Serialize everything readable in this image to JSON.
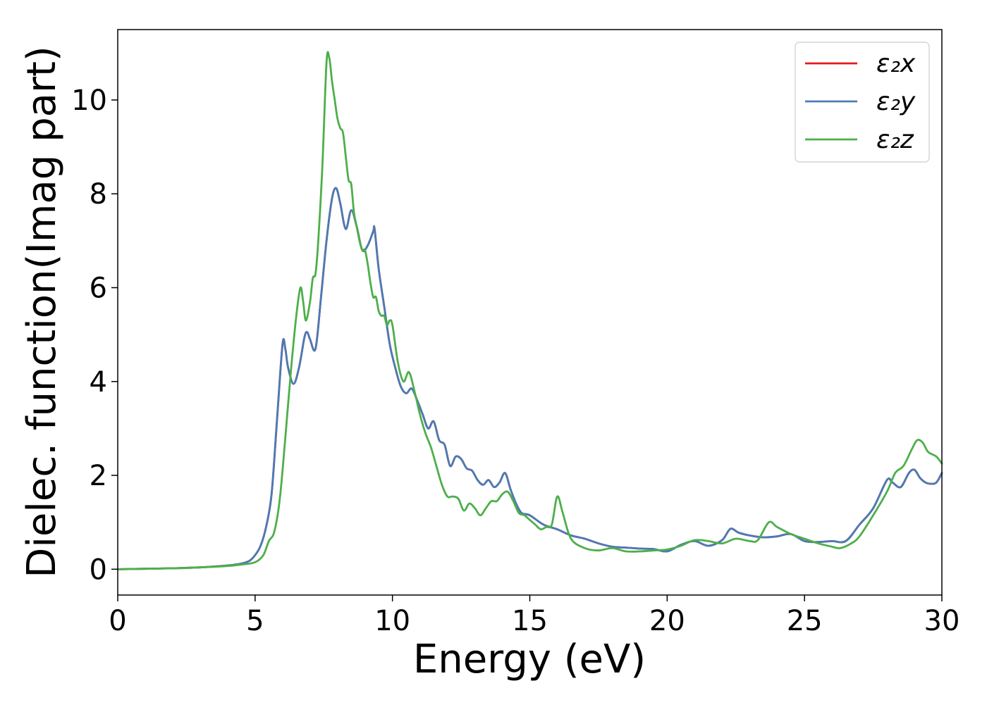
{
  "chart_data": {
    "type": "line",
    "xlabel": "Energy (eV)",
    "ylabel": "Dielec. function(Imag part)",
    "xlim": [
      0,
      30
    ],
    "ylim": [
      -0.55,
      11.5
    ],
    "xticks": [
      0,
      5,
      10,
      15,
      20,
      25,
      30
    ],
    "yticks": [
      0,
      2,
      4,
      6,
      8,
      10
    ],
    "grid": false,
    "legend_position": "top-right",
    "series": [
      {
        "name": "ε₂x",
        "color": "#e41a1c",
        "x": [
          0,
          1,
          2,
          3,
          4,
          4.5,
          4.8,
          5.0,
          5.2,
          5.4,
          5.6,
          5.8,
          6.0,
          6.1,
          6.2,
          6.4,
          6.6,
          6.8,
          6.9,
          7.0,
          7.2,
          7.4,
          7.6,
          7.8,
          7.95,
          8.1,
          8.3,
          8.5,
          8.7,
          8.9,
          9.1,
          9.3,
          9.35,
          9.5,
          9.7,
          9.9,
          10.1,
          10.3,
          10.5,
          10.7,
          10.9,
          11.1,
          11.3,
          11.5,
          11.7,
          11.9,
          12.1,
          12.3,
          12.5,
          12.7,
          12.9,
          13.1,
          13.3,
          13.5,
          13.7,
          13.9,
          14.1,
          14.3,
          14.5,
          14.7,
          15.0,
          15.5,
          16.0,
          16.5,
          17.0,
          17.5,
          18.0,
          18.5,
          19.0,
          19.5,
          20.0,
          20.5,
          21.0,
          21.5,
          22.0,
          22.3,
          22.6,
          23.0,
          23.5,
          24.0,
          24.5,
          25.0,
          25.5,
          26.0,
          26.5,
          27.0,
          27.5,
          28.0,
          28.2,
          28.5,
          28.8,
          29.0,
          29.2,
          29.4,
          29.6,
          29.8,
          30.0
        ],
        "y": [
          0.0,
          0.01,
          0.02,
          0.04,
          0.08,
          0.12,
          0.18,
          0.3,
          0.5,
          0.9,
          1.6,
          3.2,
          4.8,
          4.7,
          4.3,
          3.95,
          4.3,
          4.95,
          5.05,
          4.9,
          4.7,
          5.8,
          7.0,
          7.9,
          8.12,
          7.8,
          7.25,
          7.65,
          7.3,
          6.8,
          6.9,
          7.2,
          7.25,
          6.4,
          5.6,
          4.8,
          4.3,
          3.9,
          3.75,
          3.85,
          3.6,
          3.3,
          3.0,
          3.15,
          2.75,
          2.65,
          2.2,
          2.4,
          2.35,
          2.15,
          2.1,
          1.9,
          1.8,
          1.9,
          1.75,
          1.85,
          2.05,
          1.7,
          1.4,
          1.2,
          1.15,
          0.95,
          0.85,
          0.72,
          0.65,
          0.55,
          0.48,
          0.46,
          0.44,
          0.43,
          0.38,
          0.52,
          0.6,
          0.5,
          0.62,
          0.86,
          0.78,
          0.72,
          0.68,
          0.7,
          0.75,
          0.6,
          0.58,
          0.6,
          0.6,
          0.95,
          1.3,
          1.9,
          1.85,
          1.75,
          2.05,
          2.12,
          1.95,
          1.85,
          1.82,
          1.85,
          2.05
        ]
      },
      {
        "name": "ε₂y",
        "color": "#4a7bb5",
        "x": [
          0,
          1,
          2,
          3,
          4,
          4.5,
          4.8,
          5.0,
          5.2,
          5.4,
          5.6,
          5.8,
          6.0,
          6.1,
          6.2,
          6.4,
          6.6,
          6.8,
          6.9,
          7.0,
          7.2,
          7.4,
          7.6,
          7.8,
          7.95,
          8.1,
          8.3,
          8.5,
          8.7,
          8.9,
          9.1,
          9.3,
          9.35,
          9.5,
          9.7,
          9.9,
          10.1,
          10.3,
          10.5,
          10.7,
          10.9,
          11.1,
          11.3,
          11.5,
          11.7,
          11.9,
          12.1,
          12.3,
          12.5,
          12.7,
          12.9,
          13.1,
          13.3,
          13.5,
          13.7,
          13.9,
          14.1,
          14.3,
          14.5,
          14.7,
          15.0,
          15.5,
          16.0,
          16.5,
          17.0,
          17.5,
          18.0,
          18.5,
          19.0,
          19.5,
          20.0,
          20.5,
          21.0,
          21.5,
          22.0,
          22.3,
          22.6,
          23.0,
          23.5,
          24.0,
          24.5,
          25.0,
          25.5,
          26.0,
          26.5,
          27.0,
          27.5,
          28.0,
          28.2,
          28.5,
          28.8,
          29.0,
          29.2,
          29.4,
          29.6,
          29.8,
          30.0
        ],
        "y": [
          0.0,
          0.01,
          0.02,
          0.04,
          0.08,
          0.12,
          0.18,
          0.3,
          0.5,
          0.9,
          1.6,
          3.2,
          4.8,
          4.7,
          4.3,
          3.95,
          4.3,
          4.95,
          5.05,
          4.9,
          4.7,
          5.8,
          7.0,
          7.9,
          8.12,
          7.8,
          7.25,
          7.65,
          7.3,
          6.8,
          6.9,
          7.2,
          7.25,
          6.4,
          5.6,
          4.8,
          4.3,
          3.9,
          3.75,
          3.85,
          3.6,
          3.3,
          3.0,
          3.15,
          2.75,
          2.65,
          2.2,
          2.4,
          2.35,
          2.15,
          2.1,
          1.9,
          1.8,
          1.9,
          1.75,
          1.85,
          2.05,
          1.7,
          1.4,
          1.2,
          1.15,
          0.95,
          0.85,
          0.72,
          0.65,
          0.55,
          0.48,
          0.46,
          0.44,
          0.43,
          0.38,
          0.52,
          0.6,
          0.5,
          0.62,
          0.86,
          0.78,
          0.72,
          0.68,
          0.7,
          0.75,
          0.6,
          0.58,
          0.6,
          0.6,
          0.95,
          1.3,
          1.9,
          1.85,
          1.75,
          2.05,
          2.12,
          1.95,
          1.85,
          1.82,
          1.85,
          2.05
        ]
      },
      {
        "name": "ε₂z",
        "color": "#4daf4a",
        "x": [
          0,
          1,
          2,
          3,
          4,
          4.5,
          5.0,
          5.3,
          5.5,
          5.7,
          5.9,
          6.1,
          6.3,
          6.5,
          6.65,
          6.75,
          6.85,
          7.0,
          7.1,
          7.2,
          7.3,
          7.45,
          7.6,
          7.7,
          7.8,
          7.9,
          8.0,
          8.1,
          8.2,
          8.3,
          8.4,
          8.5,
          8.6,
          8.7,
          8.8,
          8.9,
          9.0,
          9.1,
          9.2,
          9.3,
          9.4,
          9.5,
          9.6,
          9.7,
          9.8,
          9.9,
          10.0,
          10.2,
          10.4,
          10.6,
          10.8,
          11.0,
          11.2,
          11.4,
          11.6,
          11.8,
          12.0,
          12.2,
          12.4,
          12.6,
          12.8,
          13.0,
          13.2,
          13.4,
          13.6,
          13.8,
          14.0,
          14.2,
          14.4,
          14.6,
          14.8,
          15.0,
          15.2,
          15.4,
          15.6,
          15.8,
          16.0,
          16.2,
          16.5,
          17.0,
          17.5,
          18.0,
          18.5,
          19.0,
          19.5,
          20.0,
          20.5,
          21.0,
          21.5,
          22.0,
          22.5,
          23.0,
          23.3,
          23.7,
          24.0,
          24.5,
          25.0,
          25.5,
          26.0,
          26.3,
          26.7,
          27.0,
          27.5,
          28.0,
          28.3,
          28.6,
          28.9,
          29.1,
          29.3,
          29.5,
          29.8,
          30.0
        ],
        "y": [
          0.0,
          0.01,
          0.02,
          0.04,
          0.07,
          0.1,
          0.15,
          0.3,
          0.6,
          0.8,
          1.5,
          2.8,
          4.2,
          5.4,
          6.0,
          5.7,
          5.3,
          5.7,
          6.2,
          6.3,
          7.0,
          8.6,
          10.8,
          10.9,
          10.4,
          10.0,
          9.6,
          9.4,
          9.3,
          8.8,
          8.3,
          8.2,
          7.6,
          7.3,
          7.0,
          6.8,
          6.8,
          6.5,
          6.1,
          5.8,
          5.8,
          5.5,
          5.4,
          5.4,
          5.2,
          5.3,
          5.2,
          4.4,
          4.0,
          4.2,
          3.8,
          3.3,
          2.9,
          2.6,
          2.2,
          1.8,
          1.55,
          1.55,
          1.5,
          1.25,
          1.4,
          1.3,
          1.15,
          1.3,
          1.45,
          1.45,
          1.6,
          1.65,
          1.45,
          1.2,
          1.15,
          1.05,
          0.95,
          0.85,
          0.9,
          0.95,
          1.55,
          1.2,
          0.65,
          0.45,
          0.4,
          0.45,
          0.38,
          0.38,
          0.4,
          0.42,
          0.5,
          0.62,
          0.6,
          0.55,
          0.65,
          0.6,
          0.62,
          1.0,
          0.9,
          0.75,
          0.65,
          0.55,
          0.48,
          0.45,
          0.55,
          0.7,
          1.15,
          1.65,
          2.05,
          2.2,
          2.55,
          2.75,
          2.7,
          2.5,
          2.4,
          2.25
        ]
      }
    ]
  }
}
